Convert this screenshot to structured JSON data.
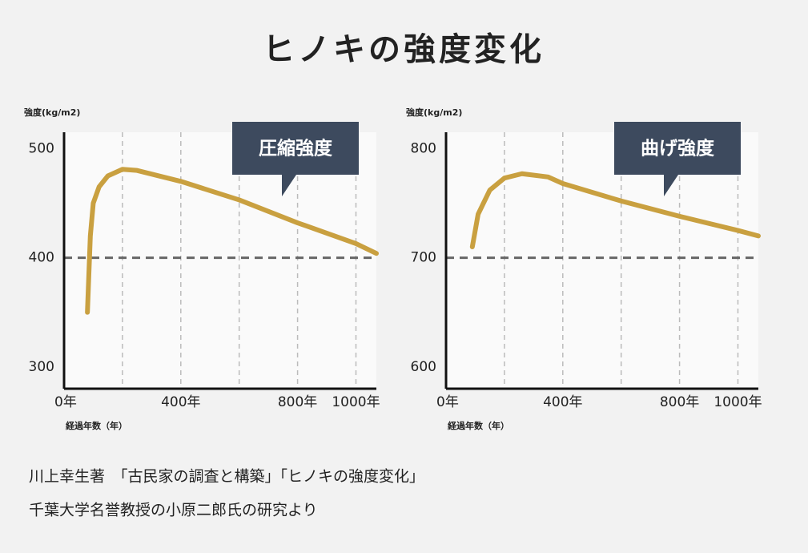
{
  "title": "ヒノキの強度変化",
  "chart_data": [
    {
      "type": "line",
      "ylabel": "強度(kg/m2)",
      "xlabel": "経過年数（年）",
      "xlim": [
        0,
        1070
      ],
      "ylim": [
        280,
        515
      ],
      "xticks": [
        {
          "value": 0,
          "label": "0年"
        },
        {
          "value": 400,
          "label": "400年"
        },
        {
          "value": 800,
          "label": "800年"
        },
        {
          "value": 1000,
          "label": "1000年"
        }
      ],
      "xgrid": [
        200,
        400,
        600,
        800,
        1000
      ],
      "yticks": [
        300,
        400,
        500
      ],
      "ref_line": 400,
      "series": [
        {
          "name": "圧縮強度",
          "color": "#c9a040",
          "x": [
            80,
            90,
            100,
            120,
            150,
            200,
            250,
            400,
            600,
            800,
            1000,
            1070
          ],
          "values": [
            350,
            420,
            450,
            465,
            475,
            481,
            480,
            470,
            453,
            432,
            413,
            404
          ]
        }
      ]
    },
    {
      "type": "line",
      "ylabel": "強度(kg/m2)",
      "xlabel": "経過年数（年）",
      "xlim": [
        0,
        1070
      ],
      "ylim": [
        580,
        815
      ],
      "xticks": [
        {
          "value": 0,
          "label": "0年"
        },
        {
          "value": 400,
          "label": "400年"
        },
        {
          "value": 800,
          "label": "800年"
        },
        {
          "value": 1000,
          "label": "1000年"
        }
      ],
      "xgrid": [
        200,
        400,
        600,
        800,
        1000
      ],
      "yticks": [
        600,
        700,
        800
      ],
      "ref_line": 700,
      "series": [
        {
          "name": "曲げ強度",
          "color": "#c9a040",
          "x": [
            90,
            110,
            150,
            200,
            260,
            350,
            400,
            600,
            800,
            1000,
            1070
          ],
          "values": [
            710,
            740,
            762,
            773,
            777,
            774,
            768,
            752,
            738,
            725,
            720
          ]
        }
      ]
    }
  ],
  "source": [
    "川上幸生著　「古民家の調査と構築」「ヒノキの強度変化」",
    "千葉大学名誉教授の小原二郎氏の研究より"
  ]
}
